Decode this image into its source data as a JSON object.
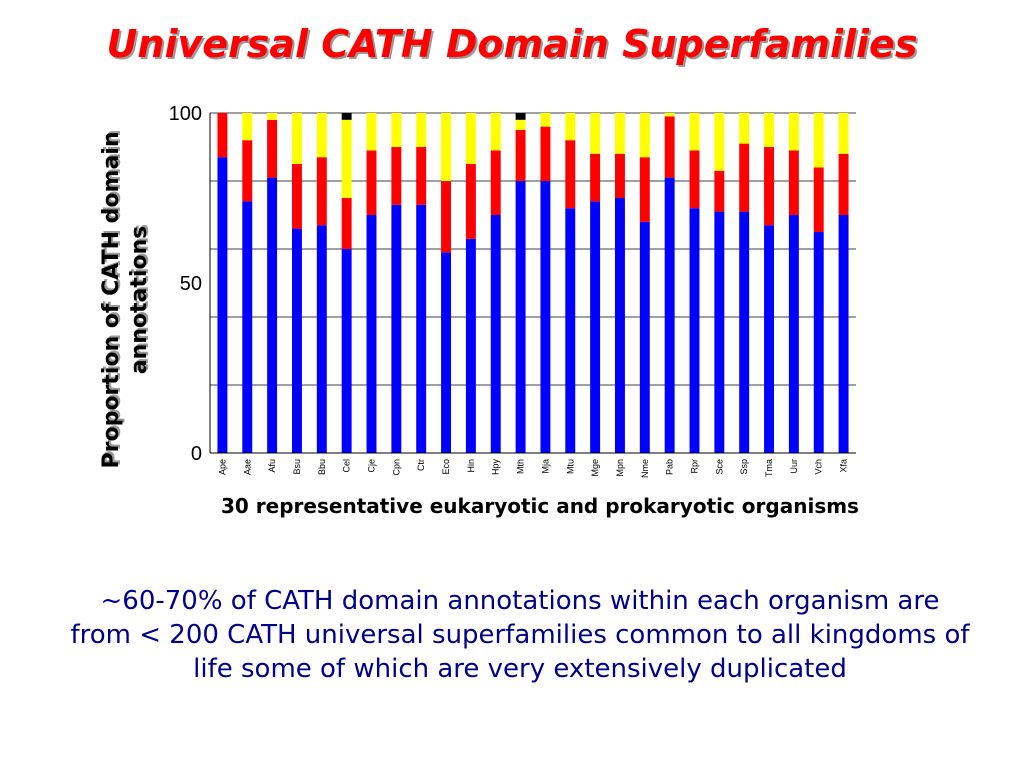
{
  "slide": {
    "title": "Universal CATH Domain Superfamilies",
    "summary": "~60-70% of CATH domain annotations within each organism are from < 200 CATH universal superfamilies common to all kingdoms of life some of which are very extensively duplicated"
  },
  "chart_data": {
    "type": "bar",
    "stacked": true,
    "title": "",
    "xlabel": "30 representative eukaryotic and prokaryotic organisms",
    "ylabel": "Proportion of CATH domain annotations",
    "ylim": [
      0,
      100
    ],
    "yticks": [
      0,
      50,
      100
    ],
    "grid": true,
    "legend": "none",
    "categories": [
      "Ape",
      "Aae",
      "Afu",
      "Bsu",
      "Bbu",
      "Cel",
      "Cje",
      "Cpn",
      "Ctr",
      "Eco",
      "Hin",
      "Hpy",
      "Mth",
      "Mja",
      "Mtu",
      "Mge",
      "Mpn",
      "Nme",
      "Pab",
      "Rpr",
      "Sce",
      "Ssp",
      "Tma",
      "Uur",
      "Vch",
      "Xfa"
    ],
    "series": [
      {
        "color": "#0000ff",
        "values": [
          87,
          74,
          81,
          66,
          67,
          60,
          70,
          73,
          73,
          59,
          63,
          70,
          80,
          80,
          72,
          74,
          75,
          68,
          81,
          72,
          71,
          71,
          67,
          70,
          65,
          70
        ]
      },
      {
        "color": "#ff0000",
        "values": [
          13,
          18,
          17,
          19,
          20,
          15,
          19,
          17,
          17,
          21,
          22,
          19,
          15,
          16,
          20,
          14,
          13,
          19,
          18,
          17,
          12,
          20,
          23,
          19,
          19,
          18
        ]
      },
      {
        "color": "#ffff00",
        "values": [
          0,
          8,
          2,
          15,
          13,
          23,
          11,
          10,
          10,
          20,
          15,
          11,
          3,
          4,
          8,
          12,
          12,
          13,
          1,
          11,
          17,
          9,
          10,
          11,
          16,
          12
        ]
      },
      {
        "color": "#000000",
        "values": [
          0,
          0,
          0,
          0,
          0,
          2,
          0,
          0,
          0,
          0,
          0,
          0,
          2,
          0,
          0,
          0,
          0,
          0,
          0,
          0,
          0,
          0,
          0,
          0,
          0,
          0
        ]
      }
    ]
  }
}
